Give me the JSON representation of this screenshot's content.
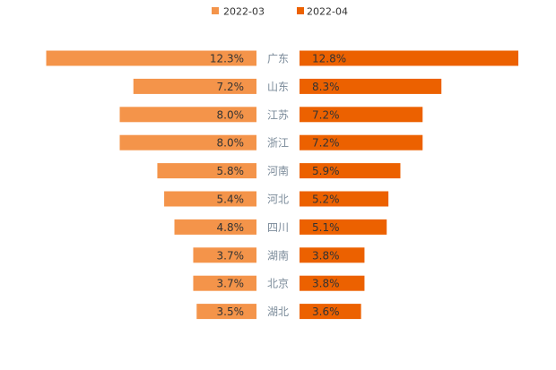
{
  "chart_data": {
    "type": "bar",
    "orientation": "horizontal-butterfly",
    "categories": [
      "广东",
      "山东",
      "江苏",
      "浙江",
      "河南",
      "河北",
      "四川",
      "湖南",
      "北京",
      "湖北"
    ],
    "series": [
      {
        "name": "2022-03",
        "color": "#F4944A",
        "direction": "left",
        "values": [
          12.3,
          7.2,
          8.0,
          8.0,
          5.8,
          5.4,
          4.8,
          3.7,
          3.7,
          3.5
        ],
        "labels": [
          "12.3%",
          "7.2%",
          "8.0%",
          "8.0%",
          "5.8%",
          "5.4%",
          "4.8%",
          "3.7%",
          "3.7%",
          "3.5%"
        ]
      },
      {
        "name": "2022-04",
        "color": "#EC6100",
        "direction": "right",
        "values": [
          12.8,
          8.3,
          7.2,
          7.2,
          5.9,
          5.2,
          5.1,
          3.8,
          3.8,
          3.6
        ],
        "labels": [
          "12.8%",
          "8.3%",
          "7.2%",
          "7.2%",
          "5.9%",
          "5.2%",
          "5.1%",
          "3.8%",
          "3.8%",
          "3.6%"
        ]
      }
    ],
    "xlim": [
      0,
      12.8
    ],
    "legend_position": "top-center",
    "grid": false,
    "title": "",
    "xlabel": "",
    "ylabel": ""
  }
}
